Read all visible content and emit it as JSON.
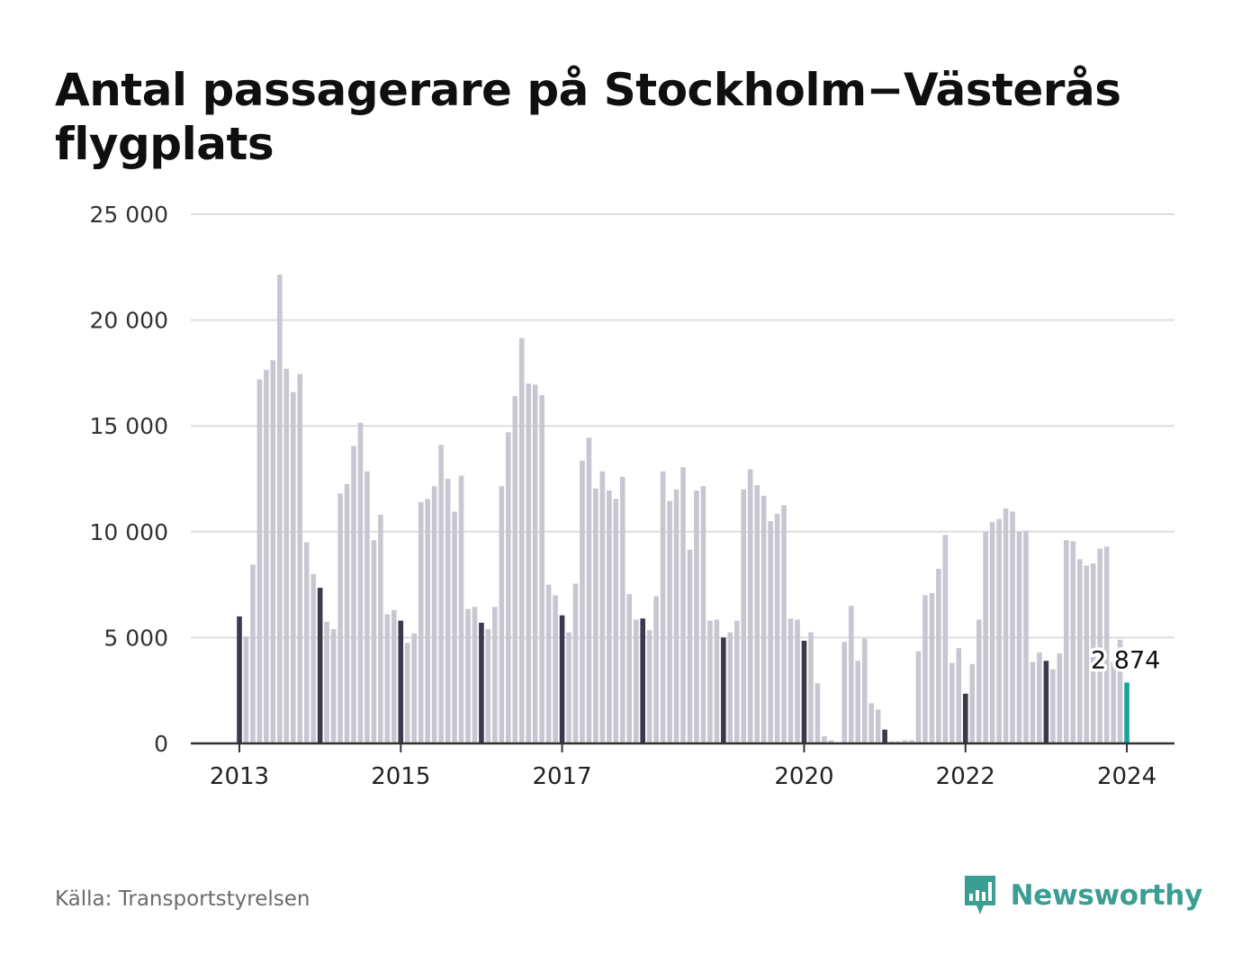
{
  "title": "Antal passagerare på Stockholm−Västerås flygplats",
  "source": "Källa: Transportstyrelsen",
  "brand": {
    "name": "Newsworthy",
    "icon": "newsworthy-logo-icon",
    "color": "#3a9e93"
  },
  "colors": {
    "bar": "#c8c7d1",
    "january_bar": "#3b3a4c",
    "latest_bar": "#16a39a",
    "grid": "#dddddd",
    "axis": "#333333"
  },
  "last_value_label": "2 874",
  "chart_data": {
    "type": "bar",
    "title": "Antal passagerare på Stockholm−Västerås flygplats",
    "xlabel": "",
    "ylabel": "",
    "ylim": [
      0,
      25000
    ],
    "grid": true,
    "start": "2013-01",
    "frequency": "monthly",
    "y_ticks": [
      0,
      5000,
      10000,
      15000,
      20000,
      25000
    ],
    "y_tick_labels": [
      "0",
      "5 000",
      "10 000",
      "15 000",
      "20 000",
      "25 000"
    ],
    "x_ticks": [
      {
        "date": "2013-01",
        "label": "2013"
      },
      {
        "date": "2015-01",
        "label": "2015"
      },
      {
        "date": "2017-01",
        "label": "2017"
      },
      {
        "date": "2020-01",
        "label": "2020"
      },
      {
        "date": "2022-01",
        "label": "2022"
      },
      {
        "date": "2024-01",
        "label": "2024"
      }
    ],
    "highlight": "January bars dark; latest month highlighted",
    "values": [
      6000,
      5050,
      8450,
      17200,
      17650,
      18100,
      22150,
      17700,
      16600,
      17450,
      9500,
      8000,
      7350,
      5750,
      5400,
      11800,
      12250,
      14050,
      15150,
      12850,
      9600,
      10800,
      6100,
      6300,
      5800,
      4750,
      5200,
      11400,
      11550,
      12150,
      14100,
      12500,
      10950,
      12650,
      6350,
      6450,
      5700,
      5400,
      6450,
      12150,
      14700,
      16400,
      19150,
      17000,
      16950,
      16450,
      7500,
      7000,
      6050,
      5250,
      7550,
      13350,
      14450,
      12050,
      12850,
      11950,
      11550,
      12600,
      7050,
      5850,
      5900,
      5350,
      6950,
      12850,
      11450,
      12000,
      13050,
      9150,
      11950,
      12150,
      5800,
      5850,
      5000,
      5250,
      5800,
      12000,
      12950,
      12200,
      11700,
      10500,
      10850,
      11250,
      5900,
      5850,
      4850,
      5250,
      2850,
      350,
      150,
      0,
      4800,
      6500,
      3900,
      4950,
      1900,
      1600,
      650,
      100,
      100,
      150,
      150,
      4350,
      7000,
      7100,
      8250,
      9850,
      3800,
      4500,
      2350,
      3750,
      5850,
      10000,
      10450,
      10600,
      11100,
      10950,
      10000,
      10050,
      3850,
      4300,
      3900,
      3500,
      4250,
      9600,
      9550,
      8700,
      8400,
      8500,
      9200,
      9300,
      3850,
      4900,
      2874
    ]
  }
}
